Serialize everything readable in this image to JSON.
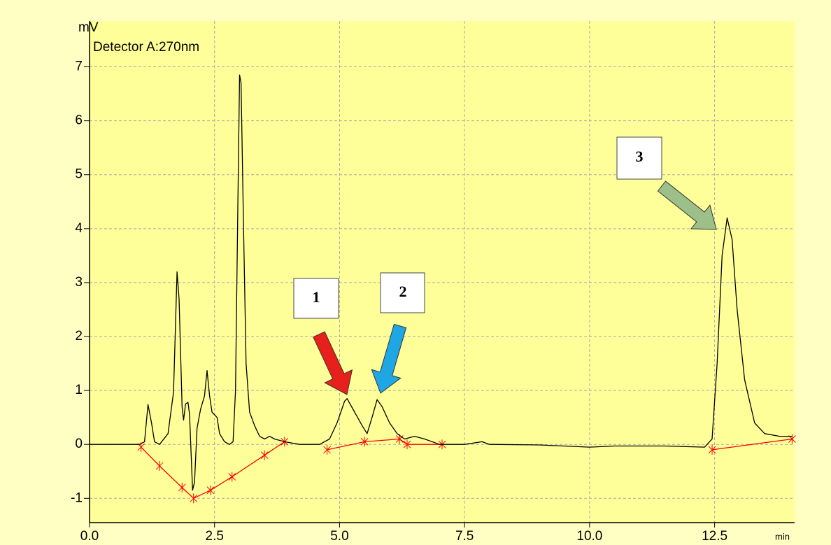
{
  "chart_data": {
    "type": "line",
    "title": "Detector A:270nm",
    "y_label": "mV",
    "x_label": "min",
    "xlim": [
      0,
      14.1
    ],
    "ylim": [
      -1.45,
      7.85
    ],
    "xticks": [
      {
        "value": 0,
        "label": "0.0"
      },
      2.5,
      {
        "value": 5,
        "label": "5.0"
      },
      7.5,
      {
        "value": 10,
        "label": "10.0"
      },
      12.5
    ],
    "yticks": [
      -1,
      0,
      1,
      2,
      3,
      4,
      5,
      6,
      7
    ],
    "grid": true,
    "series": [
      {
        "color": "#000000",
        "x": [
          0,
          1.0,
          1.1,
          1.17,
          1.24,
          1.3,
          1.4,
          1.57,
          1.68,
          1.75,
          1.79,
          1.85,
          1.88,
          1.92,
          1.97,
          2.0,
          2.06,
          2.1,
          2.15,
          2.22,
          2.3,
          2.35,
          2.4,
          2.45,
          2.55,
          2.6,
          2.7,
          2.8,
          2.87,
          2.92,
          2.96,
          3.0,
          3.03,
          3.08,
          3.13,
          3.2,
          3.3,
          3.4,
          3.5,
          3.6,
          3.7,
          3.9,
          4.2,
          4.6,
          4.8,
          4.95,
          5.1,
          5.15,
          5.3,
          5.45,
          5.55,
          5.65,
          5.75,
          5.85,
          6.0,
          6.15,
          6.3,
          6.5,
          6.7,
          7.0,
          7.5,
          7.85,
          8.0,
          9.0,
          10.0,
          10.5,
          11.5,
          12.3,
          12.45,
          12.55,
          12.65,
          12.75,
          12.85,
          12.95,
          13.1,
          13.3,
          13.5,
          13.8,
          14.05
        ],
        "values": [
          0,
          0,
          0.05,
          0.74,
          0.4,
          0.05,
          0.0,
          0.2,
          0.97,
          3.2,
          2.7,
          0.7,
          0.45,
          0.75,
          0.78,
          0.55,
          -0.85,
          -0.7,
          0.3,
          0.65,
          0.9,
          1.37,
          0.9,
          0.6,
          0.5,
          0.2,
          0.05,
          0.0,
          0.05,
          1.0,
          4.0,
          6.85,
          6.7,
          4.0,
          1.5,
          0.6,
          0.35,
          0.15,
          0.1,
          0.15,
          0.1,
          0.05,
          0.0,
          0.0,
          0.1,
          0.4,
          0.8,
          0.85,
          0.6,
          0.35,
          0.2,
          0.5,
          0.83,
          0.7,
          0.4,
          0.2,
          0.1,
          0.15,
          0.1,
          0.0,
          0.0,
          0.05,
          0.0,
          -0.01,
          -0.05,
          -0.03,
          -0.03,
          -0.05,
          0.1,
          1.5,
          3.5,
          4.2,
          3.8,
          2.5,
          1.2,
          0.4,
          0.2,
          0.15,
          0.15
        ]
      }
    ],
    "baseline": {
      "color": "#ff0000",
      "x": [
        1.03,
        1.4,
        1.85,
        2.08,
        2.42,
        2.85,
        3.5,
        3.9,
        null,
        4.75,
        5.5,
        6.2,
        6.35,
        7.05,
        null,
        12.45,
        14.05
      ],
      "values": [
        -0.05,
        -0.4,
        -0.8,
        -1.0,
        -0.85,
        -0.6,
        -0.2,
        0.05,
        null,
        -0.1,
        0.05,
        0.1,
        0.0,
        0.0,
        null,
        -0.1,
        0.1
      ]
    },
    "annotations": [
      "1",
      "2",
      "3"
    ]
  }
}
